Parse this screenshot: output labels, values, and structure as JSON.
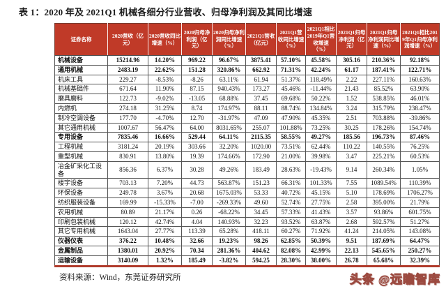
{
  "page": {
    "title": "表 1：2020 年及 2021Q1 机械各细分行业营收、归母净利润及其同比增速",
    "source": "资料来源：Wind，东莞证券研究所",
    "watermark": "头条 @远瞻智库"
  },
  "colors": {
    "header_bg": "#c03a28",
    "header_text": "#ffffff",
    "grid_line": "#555555",
    "accent_red": "#b03a2b",
    "body_text": "#111111"
  },
  "chart_data": {
    "type": "table",
    "columns": [
      "证券名称",
      "2020营收（亿元）",
      "2020营收同比增速（%）",
      "2020归母净利润（亿元）",
      "2020归母净利润同比增速（%）",
      "2021Q1营收（亿元）",
      "2021Q1营收同比增速（%）",
      "2021Q1相比2019年Q1营收增速（%）",
      "2021Q1归母净利润（亿元）",
      "2021Q1归母净利润同比增速（%）",
      "2021Q1相比2019年Q1归母净利润增速（%）"
    ],
    "rows": [
      {
        "name": "机械设备",
        "bold": true,
        "values": [
          "15214.96",
          "14.20%",
          "969.22",
          "96.67%",
          "3875.41",
          "57.10%",
          "45.58%",
          "305.16",
          "210.36%",
          "92.18%"
        ]
      },
      {
        "name": "通用机械",
        "bold": true,
        "values": [
          "2483.19",
          "22.62%",
          "151.28",
          "320.86%",
          "662.92",
          "71.31%",
          "42.24%",
          "61.17",
          "187.41%",
          "122.71%"
        ]
      },
      {
        "name": "机床工具",
        "bold": false,
        "values": [
          "229.27",
          "-8.53%",
          "-8.26",
          "63.11%",
          "61.94",
          "51.37%",
          "118.49%",
          "2.22",
          "227.11%",
          "160.63%"
        ]
      },
      {
        "name": "机械基础件",
        "bold": false,
        "values": [
          "671.64",
          "11.90%",
          "87.15",
          "940.43%",
          "173.27",
          "45.46%",
          "-11.44%",
          "21.43",
          "85.52%",
          "63.90%"
        ]
      },
      {
        "name": "磨具磨料",
        "bold": false,
        "values": [
          "122.73",
          "-9.02%",
          "-13.05",
          "68.88%",
          "37.45",
          "69.68%",
          "50.22%",
          "1.52",
          "538.85%",
          "46.01%"
        ]
      },
      {
        "name": "内燃机",
        "bold": false,
        "values": [
          "274.18",
          "31.25%",
          "8.74",
          "174.97%",
          "88.11",
          "88.74%",
          "134.84%",
          "3.24",
          "315.79%",
          "238.47%"
        ]
      },
      {
        "name": "制冷空调设备",
        "bold": false,
        "values": [
          "177.70",
          "-4.70%",
          "12.70",
          "-31.97%",
          "47.09",
          "47.90%",
          "45.35%",
          "2.51",
          "703.88%",
          "-39.86%"
        ]
      },
      {
        "name": "其它通用机械",
        "bold": false,
        "values": [
          "1007.67",
          "56.47%",
          "64.00",
          "8031.65%",
          "255.07",
          "101.88%",
          "73.25%",
          "30.25",
          "178.26%",
          "154.74%"
        ]
      },
      {
        "name": "专用设备",
        "bold": true,
        "values": [
          "7835.46",
          "16.66%",
          "529.44",
          "64.11%",
          "2115.35",
          "58.55%",
          "49.27%",
          "185.56",
          "196.73%",
          "87.46%"
        ]
      },
      {
        "name": "工程机械",
        "bold": false,
        "values": [
          "3181.24",
          "20.19%",
          "303.66",
          "32.20%",
          "1020.00",
          "73.51%",
          "62.44%",
          "110.22",
          "140.55%",
          "76.25%"
        ]
      },
      {
        "name": "重型机械",
        "bold": false,
        "values": [
          "830.91",
          "13.80%",
          "19.39",
          "174.66%",
          "172.90",
          "21.00%",
          "39.98%",
          "3.47",
          "225.21%",
          "60.53%"
        ]
      },
      {
        "name": "冶金矿采化工设备",
        "bold": false,
        "values": [
          "856.36",
          "6.37%",
          "30.28",
          "49.26%",
          "183.49",
          "28.63%",
          "-19.43%",
          "9.14",
          "260.34%",
          "1.05%"
        ]
      },
      {
        "name": "楼宇设备",
        "bold": false,
        "values": [
          "703.13",
          "7.20%",
          "44.73",
          "563.87%",
          "151.23",
          "66.31%",
          "101.33%",
          "7.55",
          "1089.54%",
          "110.39%"
        ]
      },
      {
        "name": "环保设备",
        "bold": false,
        "values": [
          "249.78",
          "3.67%",
          "20.68",
          "1675.03%",
          "53.33",
          "40.72%",
          "45.15%",
          "5.10",
          "178.69%",
          "1706.27%"
        ]
      },
      {
        "name": "纺织服装设备",
        "bold": false,
        "values": [
          "169.99",
          "-15.33%",
          "-7.00",
          "-269.33%",
          "49.60",
          "52.74%",
          "27.75%",
          "2.58",
          "395.00%",
          "21.79%"
        ]
      },
      {
        "name": "农用机械",
        "bold": false,
        "values": [
          "80.89",
          "21.17%",
          "0.26",
          "-68.22%",
          "34.45",
          "57.33%",
          "41.43%",
          "3.57",
          "93.86%",
          "601.75%"
        ]
      },
      {
        "name": "印刷包装机械",
        "bold": false,
        "values": [
          "120.12",
          "42.74%",
          "4.04",
          "140.93%",
          "32.23",
          "93.52%",
          "63.87%",
          "2.68",
          "592.57%",
          "51.27%"
        ]
      },
      {
        "name": "其它专用机械",
        "bold": false,
        "values": [
          "1643.04",
          "27.77%",
          "113.39",
          "65.28%",
          "418.11",
          "60.27%",
          "71.92%",
          "41.24",
          "214.05%",
          "143.08%"
        ]
      },
      {
        "name": "仪器仪表",
        "bold": true,
        "values": [
          "376.22",
          "10.48%",
          "32.66",
          "19.23%",
          "98.26",
          "62.85%",
          "50.39%",
          "9.51",
          "187.69%",
          "64.47%"
        ]
      },
      {
        "name": "金属制品",
        "bold": true,
        "values": [
          "1380.01",
          "20.92%",
          "70.34",
          "281.36%",
          "404.62",
          "82.08%",
          "42.99%",
          "22.13",
          "545.65%",
          "250.27%"
        ]
      },
      {
        "name": "运输设备",
        "bold": true,
        "values": [
          "3140.09",
          "1.32%",
          "185.49",
          "-3.82%",
          "594.25",
          "28.30%",
          "38.00%",
          "26.78",
          "65.68%",
          "32.39%"
        ]
      }
    ]
  }
}
